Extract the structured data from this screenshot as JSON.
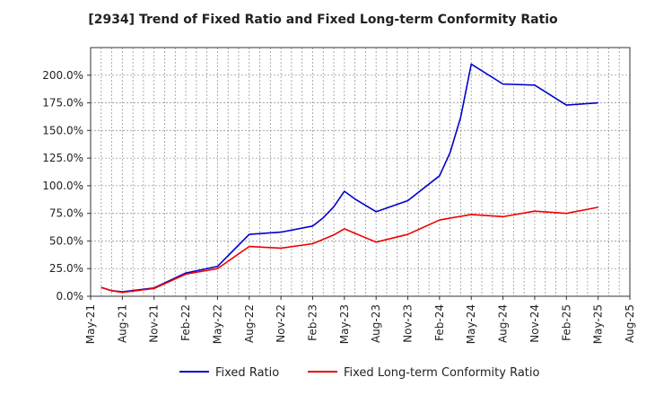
{
  "chart_data": {
    "type": "line",
    "title": "[2934]  Trend of Fixed Ratio and Fixed Long-term Conformity Ratio",
    "xlabel": "",
    "ylabel": "",
    "x_ticks": [
      "May-21",
      "Aug-21",
      "Nov-21",
      "Feb-22",
      "May-22",
      "Aug-22",
      "Nov-22",
      "Feb-23",
      "May-23",
      "Aug-23",
      "Nov-23",
      "Feb-24",
      "May-24",
      "Aug-24",
      "Nov-24",
      "Feb-25",
      "May-25",
      "Aug-25"
    ],
    "y_ticks": [
      "0.0%",
      "25.0%",
      "50.0%",
      "75.0%",
      "100.0%",
      "125.0%",
      "150.0%",
      "175.0%",
      "200.0%"
    ],
    "ylim": [
      0,
      225
    ],
    "grid": true,
    "legend_position": "bottom",
    "series": [
      {
        "name": "Fixed Ratio",
        "color": "#0000cc",
        "points": [
          [
            "Jun-21",
            8.0
          ],
          [
            "Jul-21",
            5.0
          ],
          [
            "Aug-21",
            4.0
          ],
          [
            "Nov-21",
            7.5
          ],
          [
            "Feb-22",
            21.0
          ],
          [
            "May-22",
            27.0
          ],
          [
            "Aug-22",
            56.0
          ],
          [
            "Nov-22",
            58.0
          ],
          [
            "Feb-23",
            63.5
          ],
          [
            "Mar-23",
            71.0
          ],
          [
            "Apr-23",
            81.0
          ],
          [
            "May-23",
            95.0
          ],
          [
            "Jun-23",
            88.0
          ],
          [
            "Aug-23",
            76.5
          ],
          [
            "Nov-23",
            86.5
          ],
          [
            "Feb-24",
            109.0
          ],
          [
            "Mar-24",
            130.0
          ],
          [
            "Apr-24",
            162.0
          ],
          [
            "May-24",
            210.0
          ],
          [
            "Aug-24",
            192.0
          ],
          [
            "Nov-24",
            191.0
          ],
          [
            "Feb-25",
            173.0
          ],
          [
            "May-25",
            175.0
          ]
        ]
      },
      {
        "name": "Fixed Long-term Conformity Ratio",
        "color": "#ee0000",
        "points": [
          [
            "Jun-21",
            8.0
          ],
          [
            "Jul-21",
            5.0
          ],
          [
            "Aug-21",
            3.5
          ],
          [
            "Nov-21",
            7.0
          ],
          [
            "Feb-22",
            20.0
          ],
          [
            "May-22",
            25.0
          ],
          [
            "Aug-22",
            45.0
          ],
          [
            "Nov-22",
            43.5
          ],
          [
            "Feb-23",
            47.5
          ],
          [
            "Mar-23",
            51.5
          ],
          [
            "Apr-23",
            55.5
          ],
          [
            "May-23",
            61.0
          ],
          [
            "Jun-23",
            57.0
          ],
          [
            "Aug-23",
            49.0
          ],
          [
            "Nov-23",
            56.0
          ],
          [
            "Feb-24",
            69.0
          ],
          [
            "May-24",
            74.0
          ],
          [
            "Aug-24",
            72.0
          ],
          [
            "Nov-24",
            77.0
          ],
          [
            "Feb-25",
            75.0
          ],
          [
            "May-25",
            80.5
          ]
        ]
      }
    ]
  }
}
